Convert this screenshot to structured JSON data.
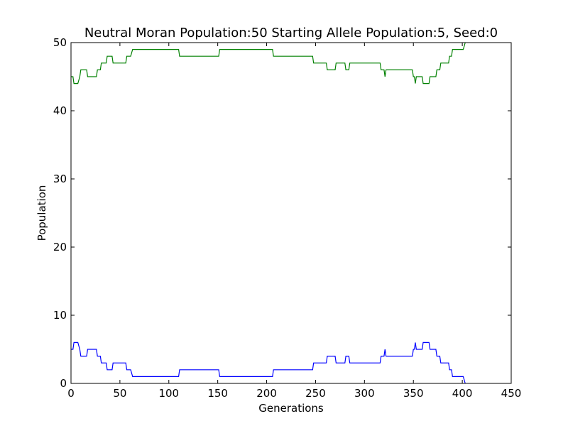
{
  "chart_data": {
    "type": "line",
    "title": "Neutral Moran Population:50 Starting Allele Population:5, Seed:0",
    "xlabel": "Generations",
    "ylabel": "Population",
    "xlim": [
      0,
      450
    ],
    "ylim": [
      0,
      50
    ],
    "x_ticks": [
      0,
      50,
      100,
      150,
      200,
      250,
      300,
      350,
      400,
      450
    ],
    "y_ticks": [
      0,
      10,
      20,
      30,
      40,
      50
    ],
    "grid": false,
    "legend": "none",
    "series": [
      {
        "color": "#0000ff",
        "points": [
          [
            0,
            5
          ],
          [
            2,
            5
          ],
          [
            3,
            6
          ],
          [
            7,
            6
          ],
          [
            9,
            5
          ],
          [
            10,
            4
          ],
          [
            16,
            4
          ],
          [
            17,
            5
          ],
          [
            26,
            5
          ],
          [
            27,
            4
          ],
          [
            30,
            4
          ],
          [
            31,
            3
          ],
          [
            36,
            3
          ],
          [
            37,
            2
          ],
          [
            42,
            2
          ],
          [
            43,
            3
          ],
          [
            56,
            3
          ],
          [
            57,
            2
          ],
          [
            61,
            2
          ],
          [
            63,
            1
          ],
          [
            110,
            1
          ],
          [
            111,
            2
          ],
          [
            151,
            2
          ],
          [
            152,
            1
          ],
          [
            206,
            1
          ],
          [
            207,
            2
          ],
          [
            247,
            2
          ],
          [
            248,
            3
          ],
          [
            261,
            3
          ],
          [
            262,
            4
          ],
          [
            270,
            4
          ],
          [
            271,
            3
          ],
          [
            280,
            3
          ],
          [
            281,
            4
          ],
          [
            284,
            4
          ],
          [
            285,
            3
          ],
          [
            316,
            3
          ],
          [
            317,
            4
          ],
          [
            320,
            4
          ],
          [
            321,
            5
          ],
          [
            322,
            4
          ],
          [
            349,
            4
          ],
          [
            350,
            5
          ],
          [
            351,
            5
          ],
          [
            352,
            6
          ],
          [
            353,
            5
          ],
          [
            359,
            5
          ],
          [
            360,
            6
          ],
          [
            366,
            6
          ],
          [
            367,
            5
          ],
          [
            373,
            5
          ],
          [
            374,
            4
          ],
          [
            377,
            4
          ],
          [
            378,
            3
          ],
          [
            386,
            3
          ],
          [
            387,
            2
          ],
          [
            389,
            2
          ],
          [
            390,
            1
          ],
          [
            401,
            1
          ],
          [
            403,
            0
          ]
        ]
      },
      {
        "color": "#008000",
        "points": [
          [
            0,
            45
          ],
          [
            2,
            45
          ],
          [
            3,
            44
          ],
          [
            7,
            44
          ],
          [
            9,
            45
          ],
          [
            10,
            46
          ],
          [
            16,
            46
          ],
          [
            17,
            45
          ],
          [
            26,
            45
          ],
          [
            27,
            46
          ],
          [
            30,
            46
          ],
          [
            31,
            47
          ],
          [
            36,
            47
          ],
          [
            37,
            48
          ],
          [
            42,
            48
          ],
          [
            43,
            47
          ],
          [
            56,
            47
          ],
          [
            57,
            48
          ],
          [
            61,
            48
          ],
          [
            63,
            49
          ],
          [
            110,
            49
          ],
          [
            111,
            48
          ],
          [
            151,
            48
          ],
          [
            152,
            49
          ],
          [
            206,
            49
          ],
          [
            207,
            48
          ],
          [
            247,
            48
          ],
          [
            248,
            47
          ],
          [
            261,
            47
          ],
          [
            262,
            46
          ],
          [
            270,
            46
          ],
          [
            271,
            47
          ],
          [
            280,
            47
          ],
          [
            281,
            46
          ],
          [
            284,
            46
          ],
          [
            285,
            47
          ],
          [
            316,
            47
          ],
          [
            317,
            46
          ],
          [
            320,
            46
          ],
          [
            321,
            45
          ],
          [
            322,
            46
          ],
          [
            349,
            46
          ],
          [
            350,
            45
          ],
          [
            351,
            45
          ],
          [
            352,
            44
          ],
          [
            353,
            45
          ],
          [
            359,
            45
          ],
          [
            360,
            44
          ],
          [
            366,
            44
          ],
          [
            367,
            45
          ],
          [
            373,
            45
          ],
          [
            374,
            46
          ],
          [
            377,
            46
          ],
          [
            378,
            47
          ],
          [
            386,
            47
          ],
          [
            387,
            48
          ],
          [
            389,
            48
          ],
          [
            390,
            49
          ],
          [
            401,
            49
          ],
          [
            403,
            50
          ]
        ]
      }
    ]
  }
}
